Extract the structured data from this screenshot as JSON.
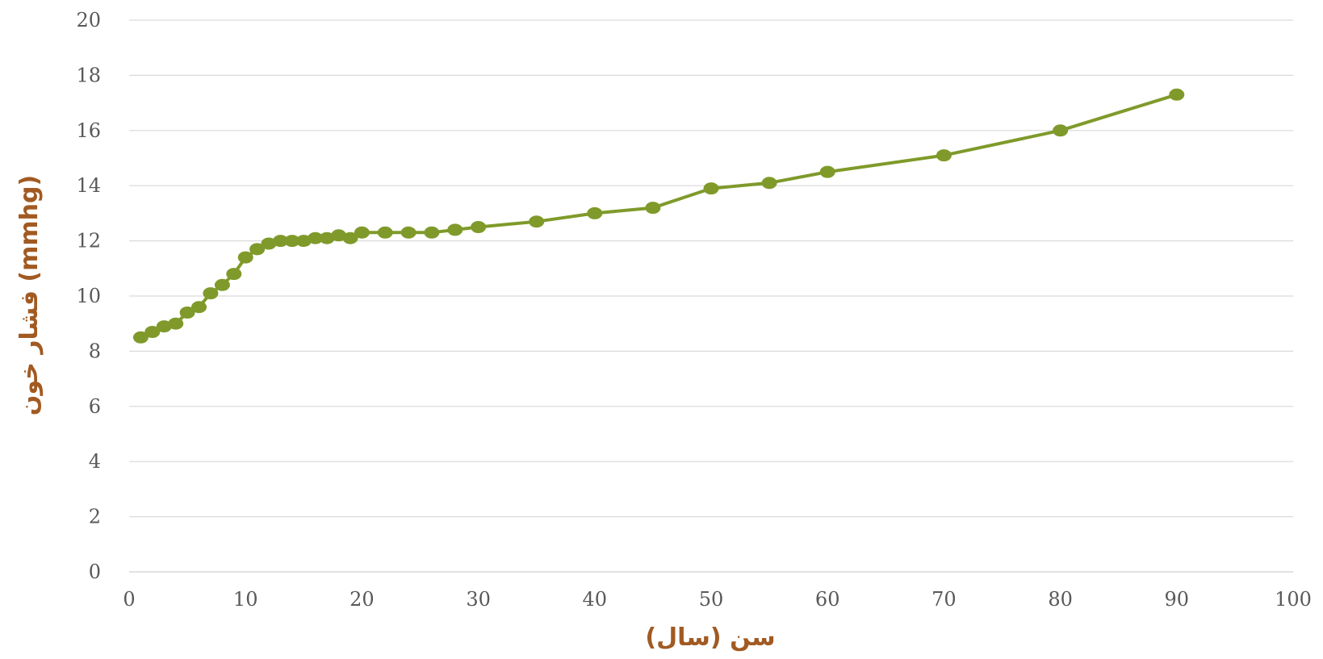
{
  "chart_data": {
    "type": "line",
    "title": "",
    "xlabel": "سن (سال)",
    "ylabel": "فشار خون (mmhg)",
    "xlim": [
      0,
      100
    ],
    "ylim": [
      0,
      20
    ],
    "x_ticks": [
      0,
      10,
      20,
      30,
      40,
      50,
      60,
      70,
      80,
      90,
      100
    ],
    "y_ticks": [
      0,
      2,
      4,
      6,
      8,
      10,
      12,
      14,
      16,
      18,
      20
    ],
    "grid": "horizontal",
    "legend": "none",
    "colors": {
      "series": "#7f9a2a",
      "axis_title": "#a15a22",
      "tick_label": "#595959",
      "grid": "#d9d9d9"
    },
    "series": [
      {
        "x": [
          1,
          2,
          3,
          4,
          5,
          6,
          7,
          8,
          9,
          10,
          11,
          12,
          13,
          14,
          15,
          16,
          17,
          18,
          19,
          20,
          22,
          24,
          26,
          28,
          30,
          35,
          40,
          45,
          50,
          55,
          60,
          70,
          80,
          90
        ],
        "y": [
          8.5,
          8.7,
          8.9,
          9.0,
          9.4,
          9.6,
          10.1,
          10.4,
          10.8,
          11.4,
          11.7,
          11.9,
          12.0,
          12.0,
          12.0,
          12.1,
          12.1,
          12.2,
          12.1,
          12.3,
          12.3,
          12.3,
          12.3,
          12.4,
          12.5,
          12.7,
          13.0,
          13.2,
          13.9,
          14.1,
          14.5,
          15.1,
          16.0,
          17.3
        ]
      }
    ]
  }
}
